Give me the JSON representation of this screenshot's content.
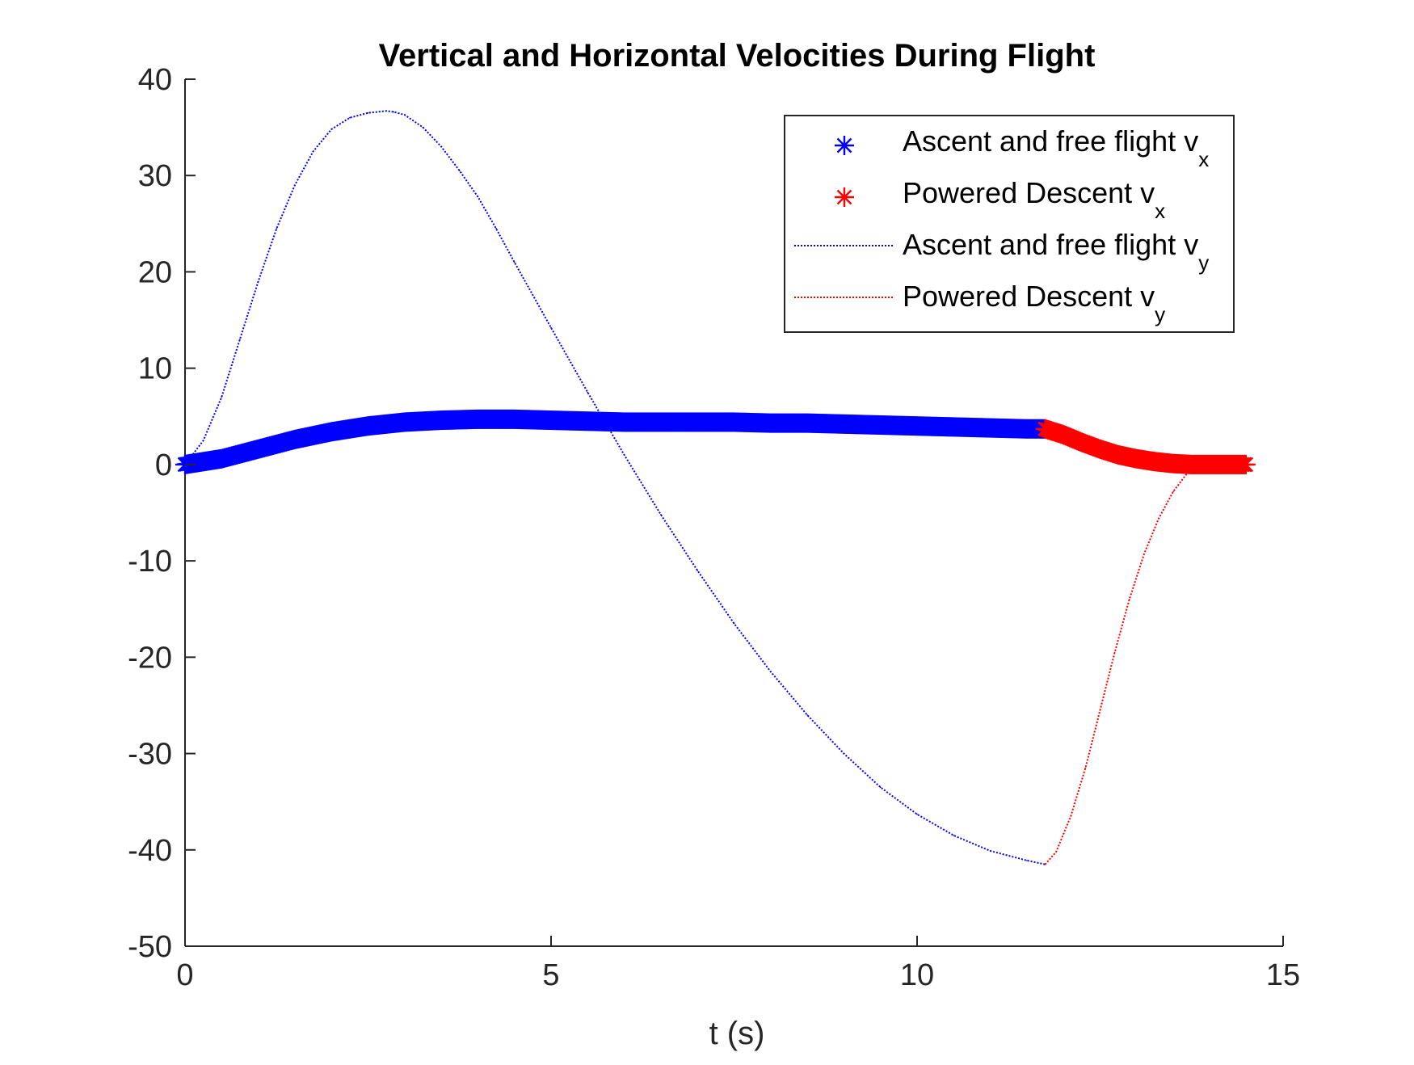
{
  "chart_data": {
    "type": "line",
    "title": "Vertical and Horizontal Velocities During Flight",
    "xlabel": "t (s)",
    "ylabel": "",
    "xlim": [
      0,
      15
    ],
    "ylim": [
      -50,
      40
    ],
    "xticks": [
      0,
      5,
      10,
      15
    ],
    "xtick_labels": [
      "0",
      "5",
      "10",
      "15"
    ],
    "yticks": [
      40,
      30,
      20,
      10,
      0,
      -10,
      -20,
      -30,
      -40,
      -50
    ],
    "ytick_labels": [
      "40",
      "30",
      "20",
      "10",
      "0",
      "-10",
      "-20",
      "-30",
      "-40",
      "-50"
    ],
    "grid": false,
    "legend_position": "top-right",
    "series": [
      {
        "name": "Ascent and free flight v_x",
        "legend_main": "Ascent and free flight v",
        "legend_sub": "x",
        "style": "markers-asterisk",
        "color": "#0000ff",
        "x": [
          0,
          0.5,
          1,
          1.5,
          2,
          2.5,
          3,
          3.5,
          4,
          4.5,
          5,
          5.5,
          6,
          6.5,
          7,
          7.5,
          8,
          8.5,
          9,
          9.5,
          10,
          10.5,
          11,
          11.5,
          11.75
        ],
        "y": [
          0,
          0.6,
          1.6,
          2.6,
          3.4,
          4.0,
          4.4,
          4.6,
          4.7,
          4.7,
          4.6,
          4.5,
          4.4,
          4.4,
          4.4,
          4.4,
          4.3,
          4.3,
          4.2,
          4.1,
          4.0,
          3.9,
          3.8,
          3.7,
          3.7
        ]
      },
      {
        "name": "Powered Descent v_x",
        "legend_main": "Powered Descent v",
        "legend_sub": "x",
        "style": "markers-asterisk",
        "color": "#ff0000",
        "x": [
          11.75,
          12.0,
          12.25,
          12.5,
          12.75,
          13.0,
          13.25,
          13.5,
          13.75,
          14.0,
          14.25,
          14.5
        ],
        "y": [
          3.7,
          3.1,
          2.3,
          1.6,
          1.0,
          0.6,
          0.3,
          0.1,
          0.0,
          0.0,
          0.0,
          0.0
        ]
      },
      {
        "name": "Ascent and free flight v_y",
        "legend_main": "Ascent and free flight v",
        "legend_sub": "y",
        "style": "dotted-line",
        "color": "#0000ff",
        "x": [
          0,
          0.25,
          0.5,
          0.75,
          1.0,
          1.25,
          1.5,
          1.75,
          2.0,
          2.25,
          2.5,
          2.75,
          2.85,
          3.0,
          3.25,
          3.5,
          3.75,
          4.0,
          4.25,
          4.5,
          5.0,
          5.5,
          6.0,
          6.5,
          7.0,
          7.5,
          8.0,
          8.5,
          9.0,
          9.5,
          10.0,
          10.5,
          11.0,
          11.5,
          11.75
        ],
        "y": [
          0,
          2.5,
          7.0,
          13.0,
          19.0,
          24.5,
          29.0,
          32.5,
          34.8,
          36.0,
          36.5,
          36.7,
          36.6,
          36.3,
          35.0,
          33.0,
          30.5,
          27.8,
          24.5,
          21.0,
          14.2,
          7.5,
          1.0,
          -5.2,
          -11.0,
          -16.5,
          -21.5,
          -26.0,
          -30.0,
          -33.5,
          -36.3,
          -38.5,
          -40.1,
          -41.1,
          -41.5
        ]
      },
      {
        "name": "Powered Descent v_y",
        "legend_main": "Powered Descent v",
        "legend_sub": "y",
        "style": "dotted-line",
        "color": "#ff0000",
        "x": [
          11.75,
          11.9,
          12.1,
          12.3,
          12.5,
          12.7,
          12.9,
          13.1,
          13.3,
          13.5,
          13.7,
          13.9,
          14.1,
          14.3,
          14.5
        ],
        "y": [
          -41.5,
          -40.2,
          -36.5,
          -31.5,
          -25.5,
          -19.5,
          -14.0,
          -9.3,
          -5.6,
          -2.8,
          -0.8,
          0.0,
          0.0,
          0.0,
          0.0
        ]
      }
    ]
  }
}
